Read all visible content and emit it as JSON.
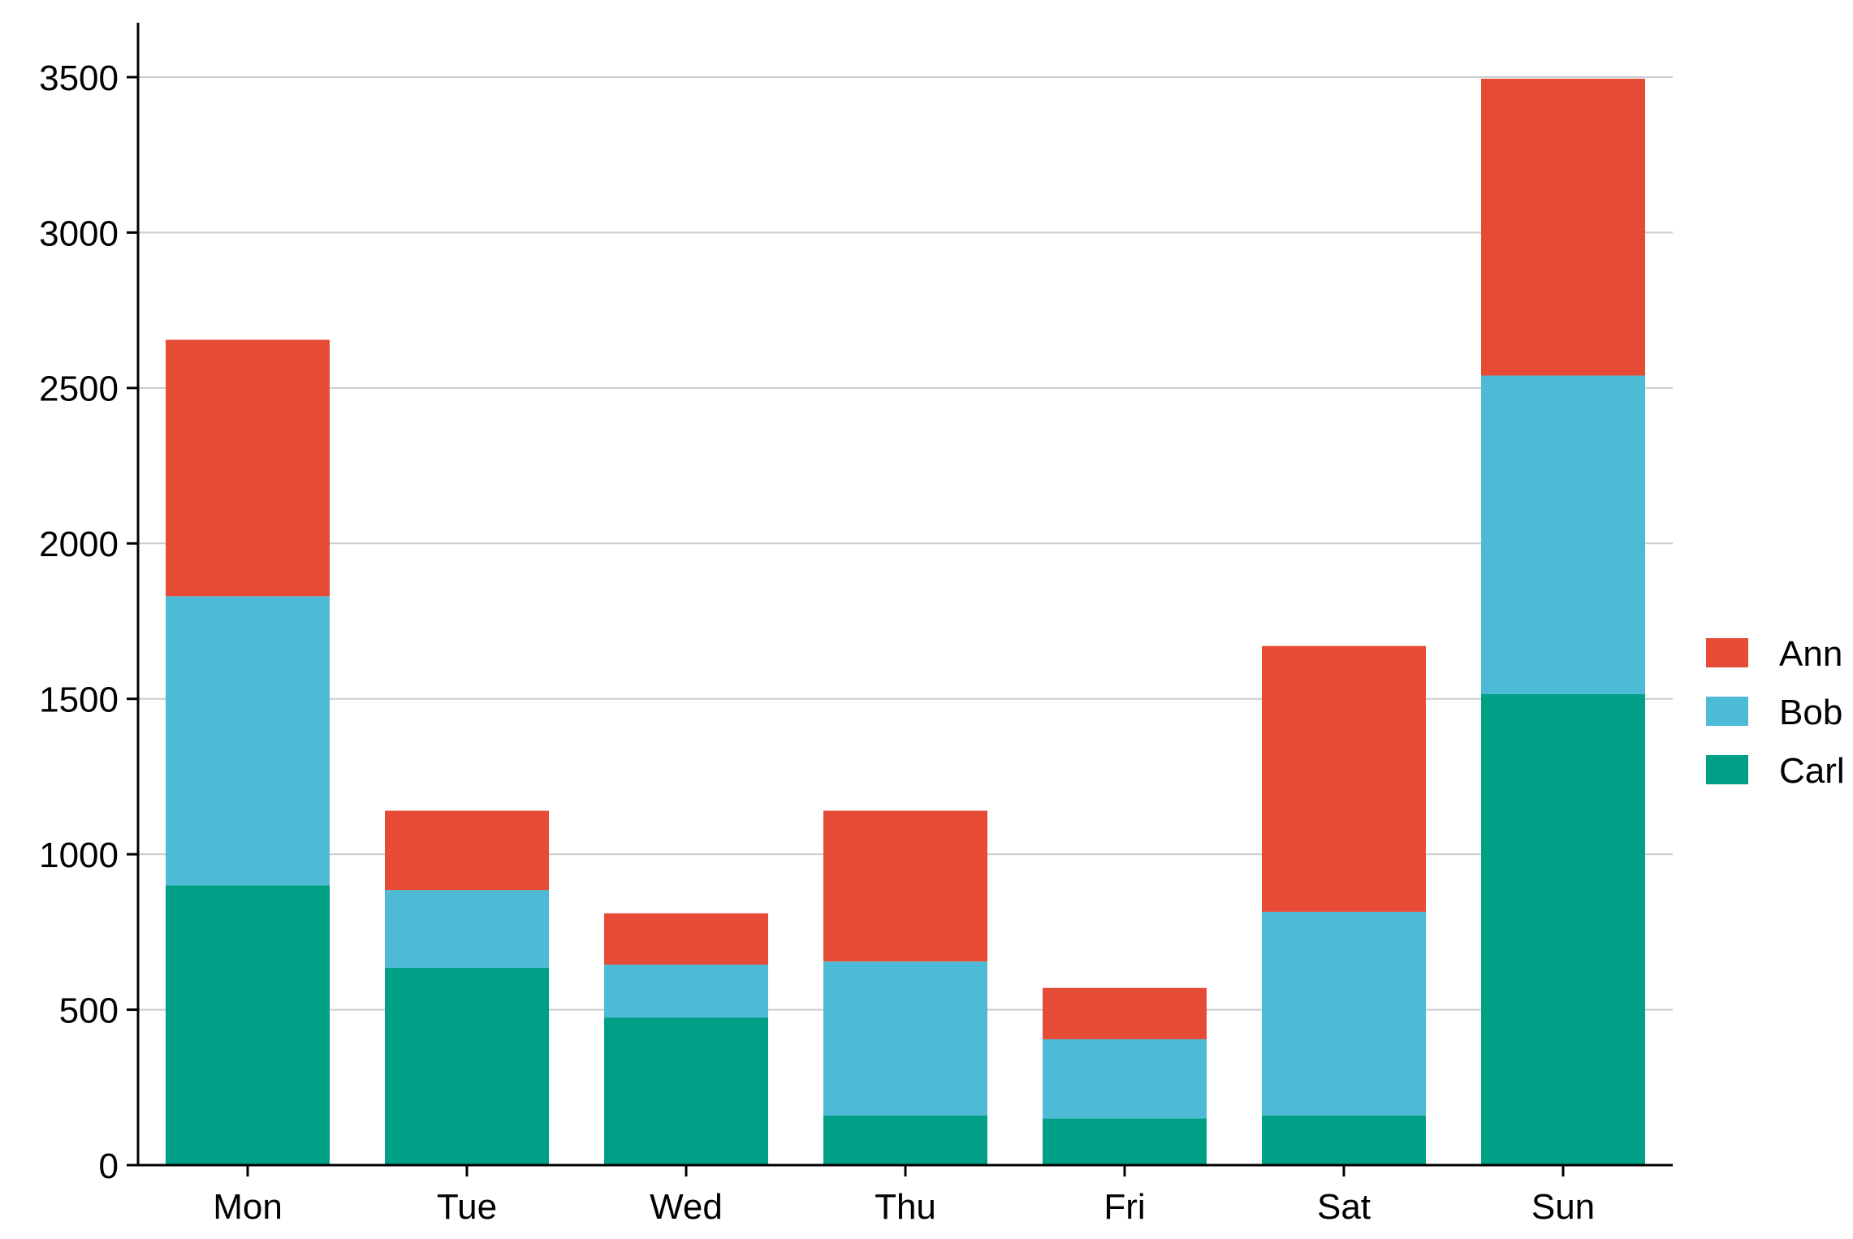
{
  "chart_data": {
    "type": "bar",
    "stacked": true,
    "categories": [
      "Mon",
      "Tue",
      "Wed",
      "Thu",
      "Fri",
      "Sat",
      "Sun"
    ],
    "series": [
      {
        "name": "Carl",
        "color": "#00a087",
        "values": [
          900,
          635,
          475,
          160,
          150,
          160,
          1515
        ]
      },
      {
        "name": "Bob",
        "color": "#4dbbd5",
        "values": [
          930,
          250,
          170,
          495,
          255,
          655,
          1025
        ]
      },
      {
        "name": "Ann",
        "color": "#e64b35",
        "values": [
          825,
          255,
          165,
          485,
          165,
          855,
          955
        ]
      }
    ],
    "legend_order": [
      "Ann",
      "Bob",
      "Carl"
    ],
    "legend_position": "right",
    "ylim": [
      0,
      3500
    ],
    "yticks": [
      0,
      500,
      1000,
      1500,
      2000,
      2500,
      3000,
      3500
    ],
    "grid": "horizontal",
    "grid_color": "#cccccc",
    "axis_color": "#000000",
    "xlabel": "",
    "ylabel": "",
    "title": ""
  }
}
